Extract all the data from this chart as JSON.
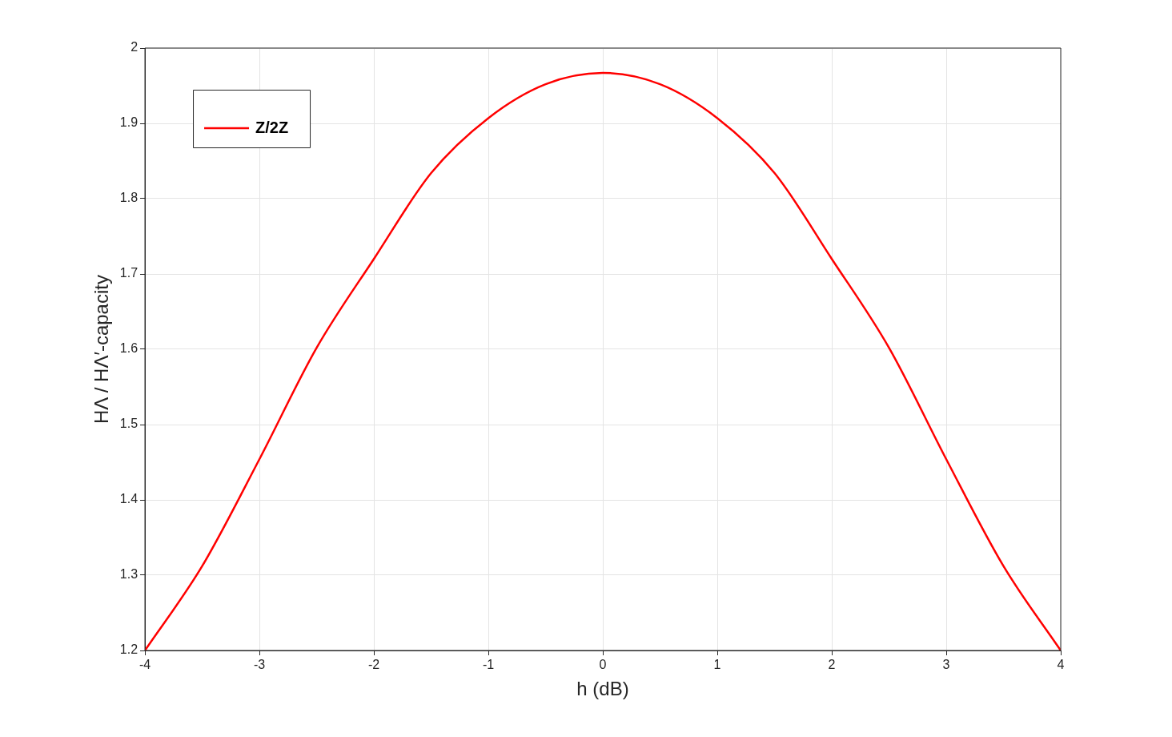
{
  "chart_data": {
    "type": "line",
    "xlabel": "h (dB)",
    "ylabel": "HΛ / HΛ′-capacity",
    "x": [
      -4,
      -3.5,
      -3,
      -2.5,
      -2,
      -1.5,
      -1,
      -0.5,
      0,
      0.5,
      1,
      1.5,
      2,
      2.5,
      3,
      3.5,
      4
    ],
    "series": [
      {
        "name": "Z/2Z",
        "color": "#ff0000",
        "values": [
          1.2,
          1.312,
          1.454,
          1.602,
          1.72,
          1.834,
          1.907,
          1.952,
          1.967,
          1.952,
          1.907,
          1.834,
          1.72,
          1.602,
          1.454,
          1.312,
          1.2
        ]
      }
    ],
    "xlim": [
      -4,
      4
    ],
    "xticks": [
      -4,
      -3,
      -2,
      -1,
      0,
      1,
      2,
      3,
      4
    ],
    "ylim": [
      1.2,
      2
    ],
    "yticks": [
      1.2,
      1.3,
      1.4,
      1.5,
      1.6,
      1.7,
      1.8,
      1.9,
      2
    ],
    "grid": true,
    "legend": "top left",
    "marker": "none",
    "line_style": "solid"
  }
}
